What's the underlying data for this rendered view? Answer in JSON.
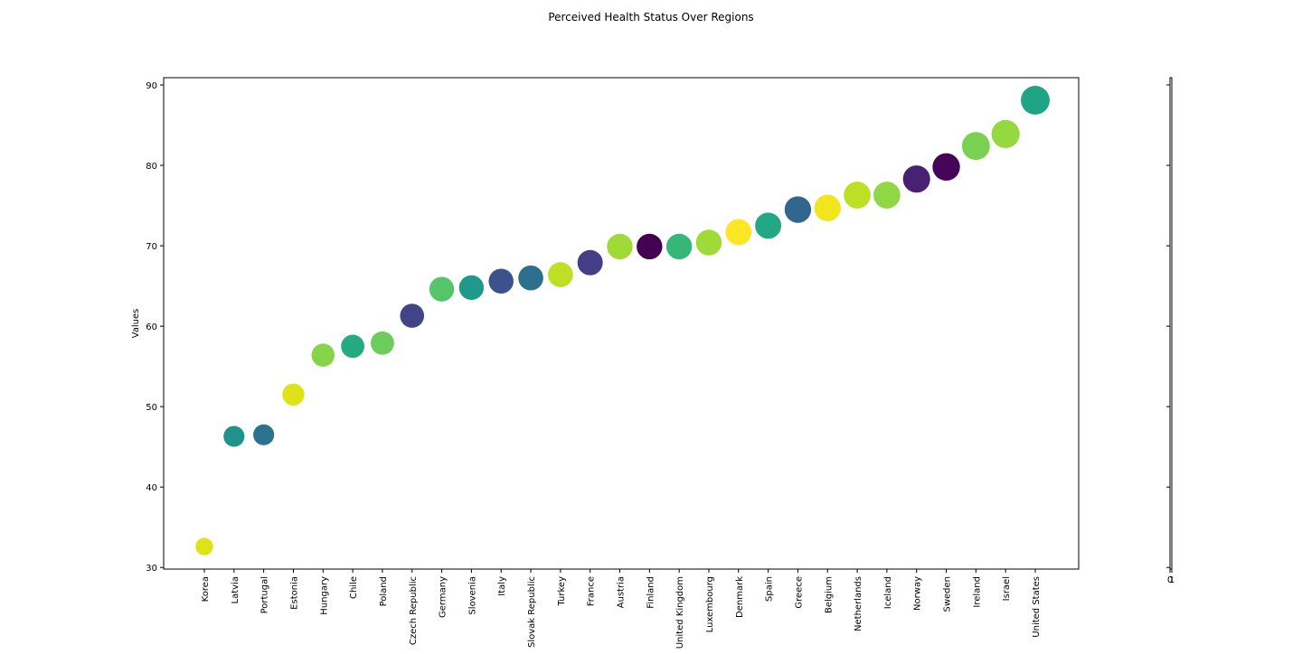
{
  "chart_data": {
    "type": "scatter",
    "title": "Perceived Health Status Over Regions",
    "y_label": "Values",
    "categories": [
      "Korea",
      "Latvia",
      "Portugal",
      "Estonia",
      "Hungary",
      "Chile",
      "Poland",
      "Czech Republic",
      "Germany",
      "Slovenia",
      "Italy",
      "Slovak Republic",
      "Turkey",
      "France",
      "Austria",
      "Finland",
      "United Kingdom",
      "Luxembourg",
      "Denmark",
      "Spain",
      "Greece",
      "Belgium",
      "Netherlands",
      "Iceland",
      "Norway",
      "Sweden",
      "Ireland",
      "Israel",
      "United States"
    ],
    "values": [
      32.6,
      46.3,
      46.5,
      51.5,
      56.4,
      57.5,
      57.9,
      61.3,
      64.6,
      64.8,
      65.6,
      66.0,
      66.4,
      67.9,
      69.9,
      69.9,
      69.9,
      70.4,
      71.7,
      72.5,
      74.5,
      74.7,
      76.3,
      76.3,
      78.3,
      79.8,
      82.4,
      83.9,
      88.1
    ],
    "colors": [
      "#dde318",
      "#21918c",
      "#2c728e",
      "#dde318",
      "#86d549",
      "#25ab82",
      "#6ccd5a",
      "#414487",
      "#54c568",
      "#1f9a8a",
      "#3b528b",
      "#2d708e",
      "#bddf26",
      "#433e85",
      "#a0da39",
      "#440154",
      "#35b779",
      "#a0da39",
      "#fde725",
      "#22a884",
      "#31668e",
      "#f1e51d",
      "#bddf26",
      "#8fd744",
      "#482173",
      "#450559",
      "#7ad151",
      "#95d840",
      "#20a486"
    ],
    "ylim": [
      29.8,
      90.9
    ],
    "yticks": [
      30,
      40,
      50,
      60,
      70,
      80,
      90
    ],
    "colorbar_xticks": [
      0,
      1
    ]
  }
}
